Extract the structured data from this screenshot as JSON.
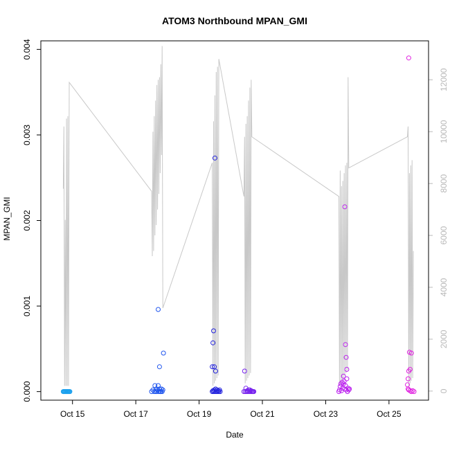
{
  "chart_data": {
    "type": "scatter",
    "title": "ATOM3 Northbound MPAN_GMI",
    "xlabel": "Date",
    "ylabel": "MPAN_GMI",
    "x_is_date": true,
    "xlim": [
      "2022-10-14T00:00",
      "2022-10-26T06:00"
    ],
    "ylim": [
      -0.0001,
      0.0041
    ],
    "x_tick_labels": [
      "Oct 15",
      "Oct 17",
      "Oct 19",
      "Oct 21",
      "Oct 23",
      "Oct 25"
    ],
    "x_tick_dates": [
      "2022-10-15",
      "2022-10-17",
      "2022-10-19",
      "2022-10-21",
      "2022-10-23",
      "2022-10-25"
    ],
    "y_ticks": [
      0.0,
      0.001,
      0.002,
      0.003,
      0.004
    ],
    "y_tick_labels": [
      "0.000",
      "0.001",
      "0.002",
      "0.003",
      "0.004"
    ],
    "secondary_axis": {
      "ylim": [
        -350,
        13500
      ],
      "ticks": [
        0,
        2000,
        4000,
        6000,
        8000,
        10000,
        12000
      ],
      "tick_labels": [
        "0",
        "2000",
        "4000",
        "6000",
        "8000",
        "10000",
        "12000"
      ],
      "color": "#b8b8b8"
    },
    "grid": false,
    "legend": "none",
    "point_series": [
      {
        "color": "#1aa0ee",
        "points": [
          [
            "2022-10-14T17:00",
            0.0
          ],
          [
            "2022-10-14T17:30",
            0.0
          ],
          [
            "2022-10-14T18:00",
            0.0
          ],
          [
            "2022-10-14T18:30",
            0.0
          ],
          [
            "2022-10-14T19:00",
            0.0
          ],
          [
            "2022-10-14T19:30",
            0.0
          ],
          [
            "2022-10-14T20:00",
            0.0
          ],
          [
            "2022-10-14T20:30",
            0.0
          ],
          [
            "2022-10-14T21:00",
            0.0
          ],
          [
            "2022-10-14T21:30",
            0.0
          ],
          [
            "2022-10-14T22:00",
            0.0
          ]
        ]
      },
      {
        "color": "#1f55ee",
        "points": [
          [
            "2022-10-17T12:00",
            0.0
          ],
          [
            "2022-10-17T13:00",
            2e-05
          ],
          [
            "2022-10-17T14:00",
            0.0
          ],
          [
            "2022-10-17T14:30",
            7e-05
          ],
          [
            "2022-10-17T15:00",
            0.0
          ],
          [
            "2022-10-17T15:30",
            3e-05
          ],
          [
            "2022-10-17T16:00",
            0.0
          ],
          [
            "2022-10-17T16:30",
            2e-05
          ],
          [
            "2022-10-17T17:00",
            7e-05
          ],
          [
            "2022-10-17T17:30",
            0.0
          ],
          [
            "2022-10-17T18:00",
            3e-05
          ],
          [
            "2022-10-17T18:30",
            0.0
          ],
          [
            "2022-10-17T19:00",
            0.0
          ],
          [
            "2022-10-17T19:30",
            3e-05
          ],
          [
            "2022-10-17T20:00",
            0.0
          ],
          [
            "2022-10-17T18:00",
            0.00029
          ],
          [
            "2022-10-17T17:00",
            0.00096
          ],
          [
            "2022-10-17T21:00",
            0.00045
          ],
          [
            "2022-10-17T20:30",
            2e-05
          ]
        ]
      },
      {
        "color": "#2222dd",
        "points": [
          [
            "2022-10-19T10:00",
            0.0
          ],
          [
            "2022-10-19T10:30",
            1e-05
          ],
          [
            "2022-10-19T11:00",
            0.0
          ],
          [
            "2022-10-19T11:30",
            2e-05
          ],
          [
            "2022-10-19T12:00",
            0.0
          ],
          [
            "2022-10-19T12:30",
            3e-05
          ],
          [
            "2022-10-19T13:00",
            0.0
          ],
          [
            "2022-10-19T13:30",
            2e-05
          ],
          [
            "2022-10-19T14:00",
            0.0
          ],
          [
            "2022-10-19T14:30",
            1e-05
          ],
          [
            "2022-10-19T15:00",
            0.0
          ],
          [
            "2022-10-19T15:30",
            2e-05
          ],
          [
            "2022-10-19T16:00",
            0.0
          ],
          [
            "2022-10-19T12:00",
            0.00273
          ],
          [
            "2022-10-19T11:00",
            0.00071
          ],
          [
            "2022-10-19T10:30",
            0.00057
          ],
          [
            "2022-10-19T11:30",
            0.00029
          ],
          [
            "2022-10-19T12:30",
            0.00024
          ],
          [
            "2022-10-19T10:00",
            0.00029
          ]
        ]
      },
      {
        "color": "#7722ee",
        "points": [
          [
            "2022-10-20T10:00",
            0.0
          ],
          [
            "2022-10-20T10:30",
            0.00024
          ],
          [
            "2022-10-20T11:00",
            0.0
          ],
          [
            "2022-10-20T11:30",
            4e-05
          ],
          [
            "2022-10-20T12:00",
            0.0
          ],
          [
            "2022-10-20T12:30",
            1e-05
          ],
          [
            "2022-10-20T13:00",
            0.0
          ],
          [
            "2022-10-20T13:30",
            2e-05
          ],
          [
            "2022-10-20T14:00",
            0.0
          ],
          [
            "2022-10-20T14:30",
            2e-05
          ],
          [
            "2022-10-20T15:00",
            0.0
          ],
          [
            "2022-10-20T15:30",
            1e-05
          ],
          [
            "2022-10-20T16:00",
            0.0
          ],
          [
            "2022-10-20T16:30",
            0.0
          ],
          [
            "2022-10-20T17:00",
            0.0
          ],
          [
            "2022-10-20T17:30",
            0.0
          ]
        ]
      },
      {
        "color": "#bb22ee",
        "points": [
          [
            "2022-10-23T10:00",
            0.0
          ],
          [
            "2022-10-23T10:30",
            2e-05
          ],
          [
            "2022-10-23T11:00",
            6e-05
          ],
          [
            "2022-10-23T11:30",
            9e-05
          ],
          [
            "2022-10-23T12:00",
            1e-05
          ],
          [
            "2022-10-23T12:30",
            0.00011
          ],
          [
            "2022-10-23T13:00",
            4e-05
          ],
          [
            "2022-10-23T13:30",
            0.00018
          ],
          [
            "2022-10-23T14:00",
            0.00012
          ],
          [
            "2022-10-23T14:30",
            3e-05
          ],
          [
            "2022-10-23T15:00",
            7e-05
          ],
          [
            "2022-10-23T15:30",
            2e-05
          ],
          [
            "2022-10-23T16:00",
            0.00015
          ],
          [
            "2022-10-23T16:30",
            0.0
          ],
          [
            "2022-10-23T17:00",
            4e-05
          ],
          [
            "2022-10-23T17:30",
            2e-05
          ],
          [
            "2022-10-23T18:00",
            3e-05
          ],
          [
            "2022-10-23T14:30",
            0.00216
          ],
          [
            "2022-10-23T15:00",
            0.00055
          ],
          [
            "2022-10-23T15:30",
            0.0004
          ],
          [
            "2022-10-23T16:00",
            0.00026
          ],
          [
            "2022-10-23T13:30",
            9e-05
          ]
        ]
      },
      {
        "color": "#e020e0",
        "points": [
          [
            "2022-10-25T15:00",
            0.0039
          ],
          [
            "2022-10-25T15:30",
            0.00046
          ],
          [
            "2022-10-25T17:00",
            0.00045
          ],
          [
            "2022-10-25T16:00",
            0.00026
          ],
          [
            "2022-10-25T15:00",
            0.00024
          ],
          [
            "2022-10-25T14:30",
            0.00015
          ],
          [
            "2022-10-25T14:00",
            8e-05
          ],
          [
            "2022-10-25T14:30",
            3e-05
          ],
          [
            "2022-10-25T15:00",
            2e-05
          ],
          [
            "2022-10-25T16:00",
            1e-05
          ],
          [
            "2022-10-25T17:00",
            0.0
          ],
          [
            "2022-10-25T18:00",
            1e-05
          ],
          [
            "2022-10-25T19:00",
            0.0
          ]
        ]
      }
    ],
    "line_series": {
      "color": "#c8c8c8",
      "axis": "secondary",
      "points": [
        [
          "2022-10-14T17:00",
          7800
        ],
        [
          "2022-10-14T17:30",
          10200
        ],
        [
          "2022-10-14T18:00",
          200
        ],
        [
          "2022-10-14T18:30",
          6600
        ],
        [
          "2022-10-14T19:00",
          200
        ],
        [
          "2022-10-14T19:30",
          10500
        ],
        [
          "2022-10-14T20:00",
          200
        ],
        [
          "2022-10-14T20:30",
          10600
        ],
        [
          "2022-10-14T21:00",
          200
        ],
        [
          "2022-10-14T21:30",
          11900
        ],
        [
          "2022-10-17T12:00",
          7700
        ],
        [
          "2022-10-17T12:30",
          5200
        ],
        [
          "2022-10-17T13:00",
          10000
        ],
        [
          "2022-10-17T13:30",
          5400
        ],
        [
          "2022-10-17T14:00",
          10600
        ],
        [
          "2022-10-17T14:30",
          6000
        ],
        [
          "2022-10-17T15:00",
          11200
        ],
        [
          "2022-10-17T15:30",
          6400
        ],
        [
          "2022-10-17T16:00",
          11800
        ],
        [
          "2022-10-17T16:30",
          7000
        ],
        [
          "2022-10-17T17:00",
          12000
        ],
        [
          "2022-10-17T17:30",
          7600
        ],
        [
          "2022-10-17T18:00",
          12100
        ],
        [
          "2022-10-17T18:30",
          8400
        ],
        [
          "2022-10-17T19:00",
          12600
        ],
        [
          "2022-10-17T19:30",
          9100
        ],
        [
          "2022-10-17T20:00",
          13300
        ],
        [
          "2022-10-17T20:30",
          3200
        ],
        [
          "2022-10-19T10:00",
          8800
        ],
        [
          "2022-10-19T10:30",
          200
        ],
        [
          "2022-10-19T11:00",
          10400
        ],
        [
          "2022-10-19T11:30",
          300
        ],
        [
          "2022-10-19T12:00",
          11400
        ],
        [
          "2022-10-19T12:30",
          400
        ],
        [
          "2022-10-19T13:00",
          12300
        ],
        [
          "2022-10-19T13:30",
          500
        ],
        [
          "2022-10-19T14:00",
          12500
        ],
        [
          "2022-10-19T14:30",
          600
        ],
        [
          "2022-10-19T15:00",
          12800
        ],
        [
          "2022-10-20T10:00",
          7500
        ],
        [
          "2022-10-20T10:30",
          9800
        ],
        [
          "2022-10-20T11:00",
          300
        ],
        [
          "2022-10-20T11:30",
          10300
        ],
        [
          "2022-10-20T12:00",
          400
        ],
        [
          "2022-10-20T12:30",
          10600
        ],
        [
          "2022-10-20T13:00",
          500
        ],
        [
          "2022-10-20T13:30",
          11200
        ],
        [
          "2022-10-20T14:00",
          600
        ],
        [
          "2022-10-20T14:30",
          11700
        ],
        [
          "2022-10-20T15:00",
          700
        ],
        [
          "2022-10-20T15:30",
          12000
        ],
        [
          "2022-10-20T16:00",
          9800
        ],
        [
          "2022-10-23T10:00",
          7500
        ],
        [
          "2022-10-23T10:30",
          200
        ],
        [
          "2022-10-23T11:00",
          8500
        ],
        [
          "2022-10-23T11:30",
          300
        ],
        [
          "2022-10-23T12:00",
          7900
        ],
        [
          "2022-10-23T12:30",
          400
        ],
        [
          "2022-10-23T13:00",
          8100
        ],
        [
          "2022-10-23T13:30",
          500
        ],
        [
          "2022-10-23T14:00",
          8400
        ],
        [
          "2022-10-23T14:30",
          600
        ],
        [
          "2022-10-23T15:00",
          8700
        ],
        [
          "2022-10-23T15:30",
          700
        ],
        [
          "2022-10-23T16:00",
          8800
        ],
        [
          "2022-10-23T16:30",
          800
        ],
        [
          "2022-10-23T17:00",
          12100
        ],
        [
          "2022-10-23T17:30",
          8600
        ],
        [
          "2022-10-25T14:00",
          9800
        ],
        [
          "2022-10-25T14:30",
          10200
        ],
        [
          "2022-10-25T15:00",
          200
        ],
        [
          "2022-10-25T15:30",
          8400
        ],
        [
          "2022-10-25T16:00",
          300
        ],
        [
          "2022-10-25T16:30",
          8700
        ],
        [
          "2022-10-25T17:00",
          400
        ],
        [
          "2022-10-25T17:30",
          8900
        ],
        [
          "2022-10-25T18:00",
          500
        ],
        [
          "2022-10-25T18:30",
          5400
        ]
      ]
    }
  }
}
